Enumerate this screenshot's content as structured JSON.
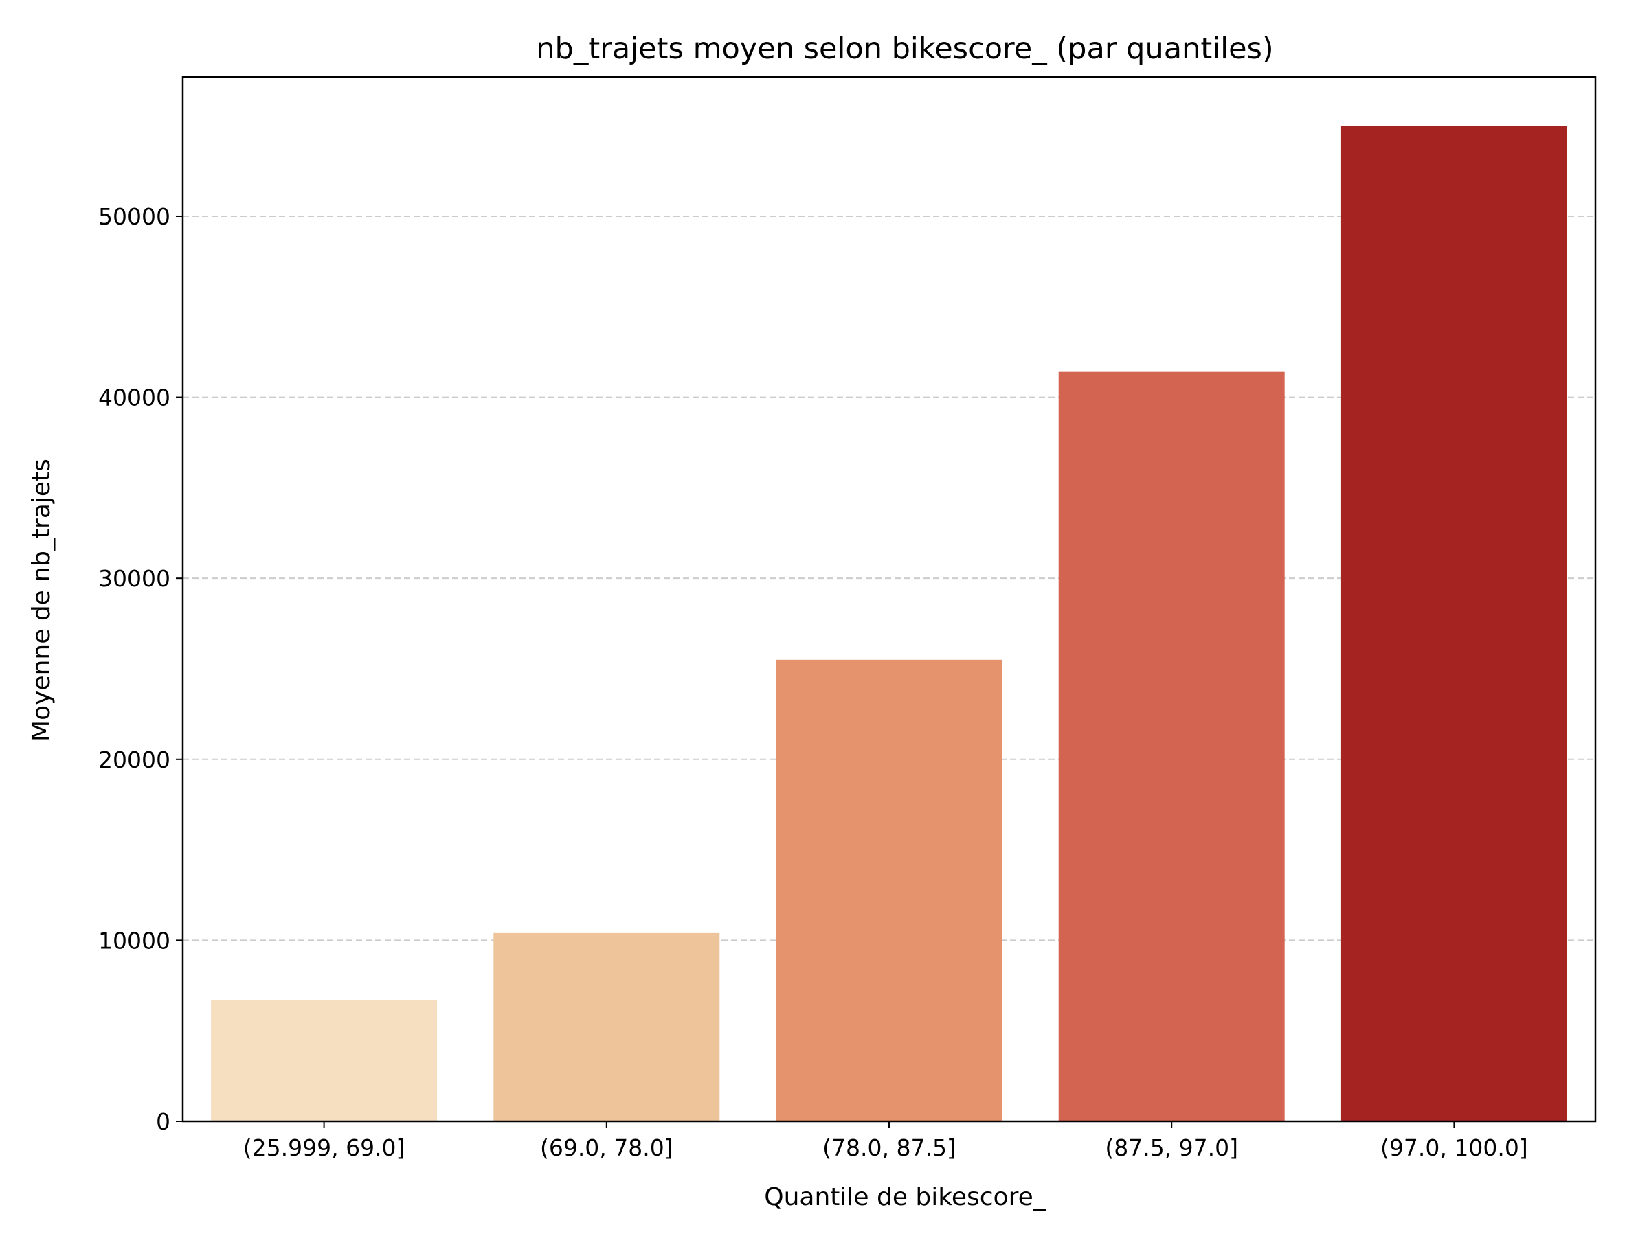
{
  "chart_data": {
    "type": "bar",
    "title": "nb_trajets moyen selon bikescore_ (par quantiles)",
    "xlabel": "Quantile de bikescore_",
    "ylabel": "Moyenne de nb_trajets",
    "categories": [
      "(25.999, 69.0]",
      "(69.0, 78.0]",
      "(78.0, 87.5]",
      "(87.5, 97.0]",
      "(97.0, 100.0]"
    ],
    "values": [
      6700,
      10400,
      25500,
      41400,
      55000
    ],
    "colors": [
      "#f6dfc1",
      "#eec49a",
      "#e4936c",
      "#d26451",
      "#a52422"
    ],
    "ylim": [
      0,
      57700
    ],
    "yticks": [
      0,
      10000,
      20000,
      30000,
      40000,
      50000
    ],
    "ytick_labels": [
      "0",
      "10000",
      "20000",
      "30000",
      "40000",
      "50000"
    ],
    "grid": {
      "axis": "y",
      "style": "dashed",
      "color": "#cccccc"
    },
    "legend": null
  }
}
